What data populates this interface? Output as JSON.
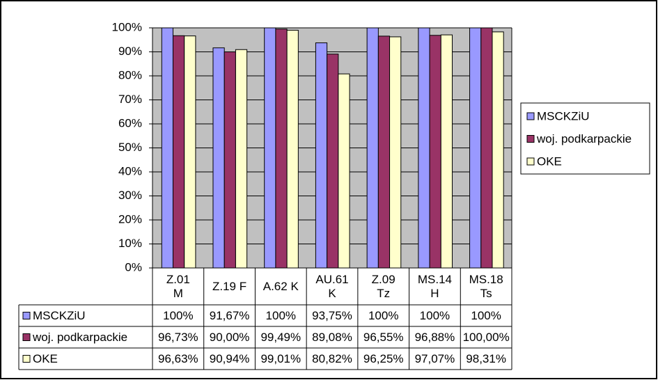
{
  "chart_data": {
    "type": "bar",
    "categories": [
      "Z.01\nM",
      "Z.19 F",
      "A.62 K",
      "AU.61\nK",
      "Z.09\nTz",
      "MS.14\nH",
      "MS.18\nTs"
    ],
    "series": [
      {
        "name": "MSCKZiU",
        "color": "#9999ff",
        "values": [
          100,
          91.67,
          100,
          93.75,
          100,
          100,
          100
        ],
        "value_labels": [
          "100%",
          "91,67%",
          "100%",
          "93,75%",
          "100%",
          "100%",
          "100%"
        ]
      },
      {
        "name": "woj. podkarpackie",
        "color": "#993366",
        "values": [
          96.73,
          90.0,
          99.49,
          89.08,
          96.55,
          96.88,
          100.0
        ],
        "value_labels": [
          "96,73%",
          "90,00%",
          "99,49%",
          "89,08%",
          "96,55%",
          "96,88%",
          "100,00%"
        ]
      },
      {
        "name": "OKE",
        "color": "#ffffcc",
        "values": [
          96.63,
          90.94,
          99.01,
          80.82,
          96.25,
          97.07,
          98.31
        ],
        "value_labels": [
          "96,63%",
          "90,94%",
          "99,01%",
          "80,82%",
          "96,25%",
          "97,07%",
          "98,31%"
        ]
      }
    ],
    "ylim": [
      0,
      100
    ],
    "yticks": [
      {
        "value": 0,
        "label": "0%"
      },
      {
        "value": 10,
        "label": "10%"
      },
      {
        "value": 20,
        "label": "20%"
      },
      {
        "value": 30,
        "label": "30%"
      },
      {
        "value": 40,
        "label": "40%"
      },
      {
        "value": 50,
        "label": "50%"
      },
      {
        "value": 60,
        "label": "60%"
      },
      {
        "value": 70,
        "label": "70%"
      },
      {
        "value": 80,
        "label": "80%"
      },
      {
        "value": 90,
        "label": "90%"
      },
      {
        "value": 100,
        "label": "100%"
      }
    ],
    "grid": true,
    "legend": "right"
  }
}
